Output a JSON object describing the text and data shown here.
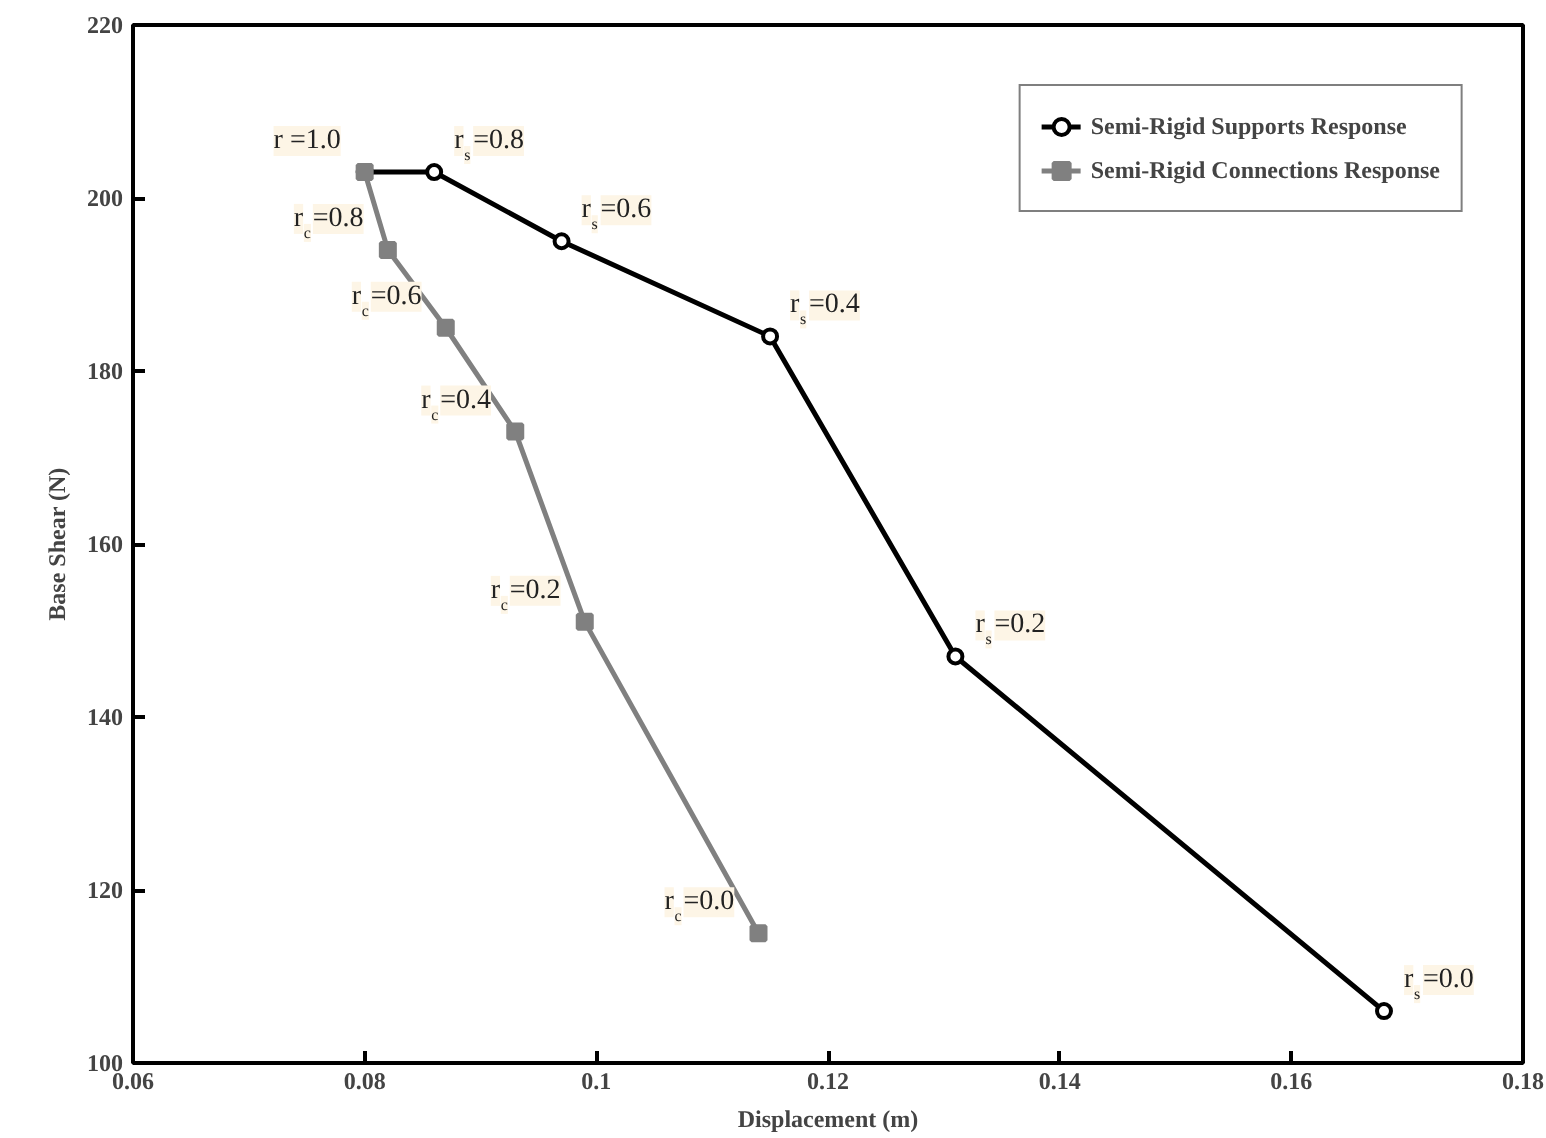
{
  "chart_data": {
    "type": "line",
    "xlabel": "Displacement (m)",
    "ylabel": "Base Shear (N)",
    "xlim": [
      0.06,
      0.18
    ],
    "xticks": [
      0.06,
      0.08,
      0.1,
      0.12,
      0.14,
      0.16,
      0.18
    ],
    "ylim": [
      100,
      220
    ],
    "yticks": [
      100,
      120,
      140,
      160,
      180,
      200,
      220
    ],
    "grid": false,
    "legend": "top right",
    "line_style": "solid",
    "series": [
      {
        "name": "Semi-Rigid Supports Response",
        "color": "#000000",
        "marker": "circle",
        "x": [
          0.08,
          0.086,
          0.097,
          0.115,
          0.131,
          0.168
        ],
        "values": [
          203,
          203,
          195,
          184,
          147,
          106
        ]
      },
      {
        "name": "Semi-Rigid Connections Response",
        "color": "#808080",
        "marker": "square",
        "x": [
          0.08,
          0.082,
          0.087,
          0.093,
          0.099,
          0.114
        ],
        "values": [
          203,
          194,
          185,
          173,
          151,
          115
        ]
      }
    ],
    "annotations": [
      {
        "text": "r =1.0",
        "x": 0.08,
        "y": 203
      },
      {
        "text": "r$_{s}$=0.8",
        "x": 0.086,
        "y": 203
      },
      {
        "text": "r$_{s}$=0.6",
        "x": 0.097,
        "y": 195
      },
      {
        "text": "r$_{s}$=0.4",
        "x": 0.115,
        "y": 184
      },
      {
        "text": "r$_{s}$=0.2",
        "x": 0.131,
        "y": 147
      },
      {
        "text": "r$_{s}$=0.0",
        "x": 0.168,
        "y": 106
      },
      {
        "text": "r$_{c}$=0.8",
        "x": 0.082,
        "y": 194
      },
      {
        "text": "r$_{c}$=0.6",
        "x": 0.087,
        "y": 185
      },
      {
        "text": "r$_{c}$=0.4",
        "x": 0.093,
        "y": 173
      },
      {
        "text": "r$_{c}$=0.2",
        "x": 0.099,
        "y": 151
      },
      {
        "text": "r$_{c}$=0.0",
        "x": 0.114,
        "y": 115
      }
    ]
  }
}
